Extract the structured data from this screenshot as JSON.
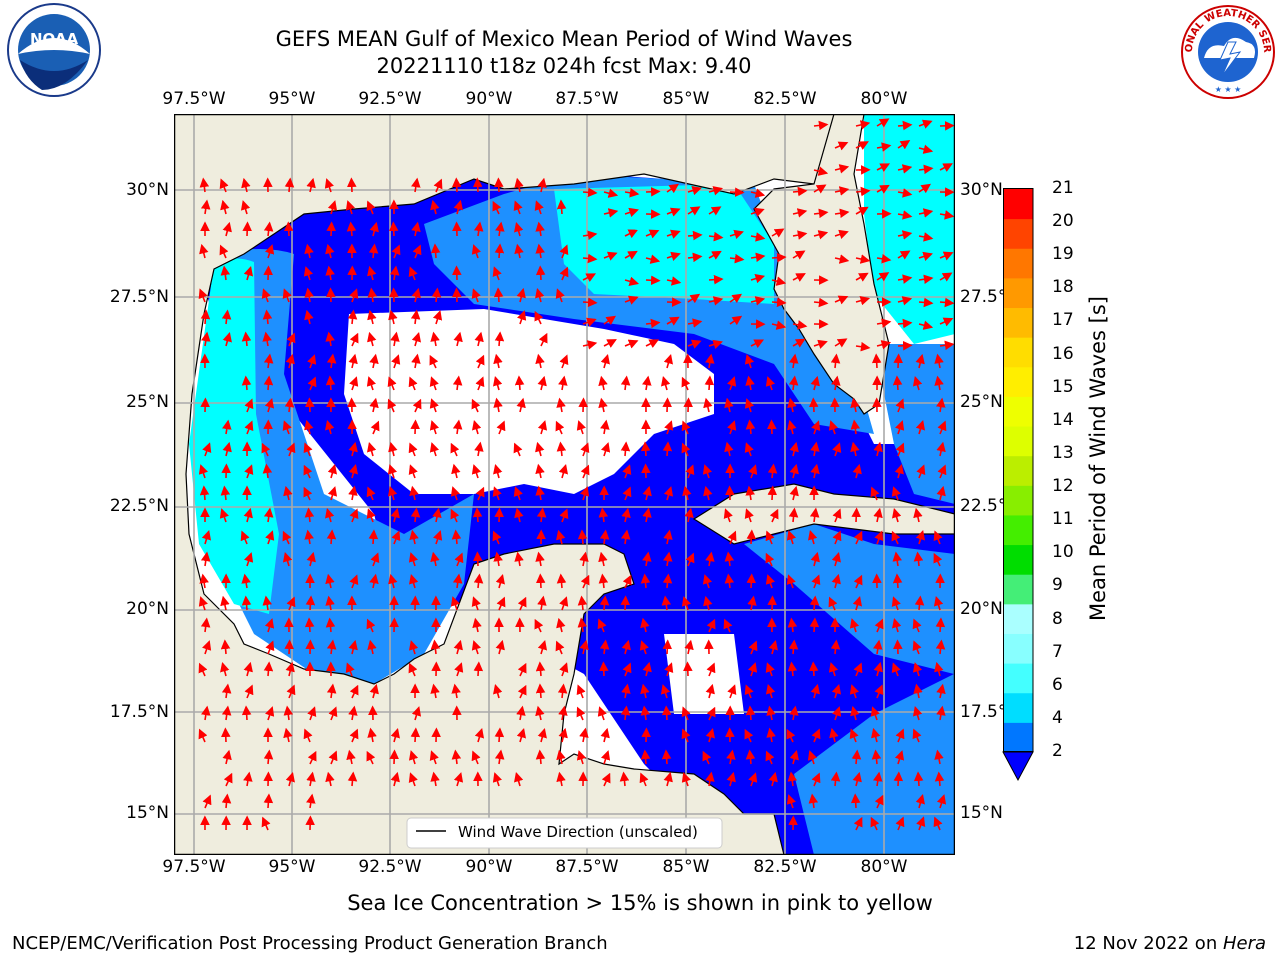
{
  "title": "GEFS MEAN Gulf of Mexico Mean Period of Wind Waves",
  "subtitle": "20221110 t18z 024h fcst   Max: 9.40",
  "map": {
    "region": "Gulf of Mexico",
    "lon_labels": [
      "97.5°W",
      "95°W",
      "92.5°W",
      "90°W",
      "87.5°W",
      "85°W",
      "82.5°W",
      "80°W"
    ],
    "lat_labels_left": [
      "30°N",
      "27.5°N",
      "25°N",
      "22.5°N",
      "20°N",
      "17.5°N",
      "15°N"
    ],
    "lat_labels_right": [
      "30°N",
      "27.5°N",
      "25°N",
      "22.5°N",
      "20°N",
      "17.5°N",
      "15°N"
    ],
    "legend_label": "Wind Wave Direction (unscaled)",
    "colors": {
      "land": "#efedde",
      "ocean_low": "#0000ff",
      "ocean_mid": "#1e90ff",
      "ocean_high": "#00ffff",
      "arrow": "#ff0000"
    }
  },
  "colorbar": {
    "label": "Mean Period of Wind Waves [s]",
    "ticks": [
      "2",
      "4",
      "6",
      "7",
      "8",
      "9",
      "10",
      "11",
      "12",
      "13",
      "14",
      "15",
      "16",
      "17",
      "18",
      "19",
      "20",
      "21"
    ],
    "colors": [
      "#0077ff",
      "#00ddff",
      "#44ffff",
      "#88ffff",
      "#aaffff",
      "#44ee77",
      "#00dd00",
      "#44ee00",
      "#88ee00",
      "#bbee00",
      "#ddff00",
      "#eeff00",
      "#ffee00",
      "#ffdd00",
      "#ffbb00",
      "#ff9900",
      "#ff7700",
      "#ff4400",
      "#ff0000"
    ]
  },
  "note": "Sea Ice Concentration > 15% is shown in pink to yellow",
  "footer": {
    "left": "NCEP/EMC/Verification Post Processing Product Generation Branch",
    "right_prefix": "12 Nov 2022 on ",
    "right_host": "Hera"
  },
  "logos": {
    "noaa_text": "NOAA",
    "nws_text": "NATIONAL WEATHER SERVICE"
  }
}
